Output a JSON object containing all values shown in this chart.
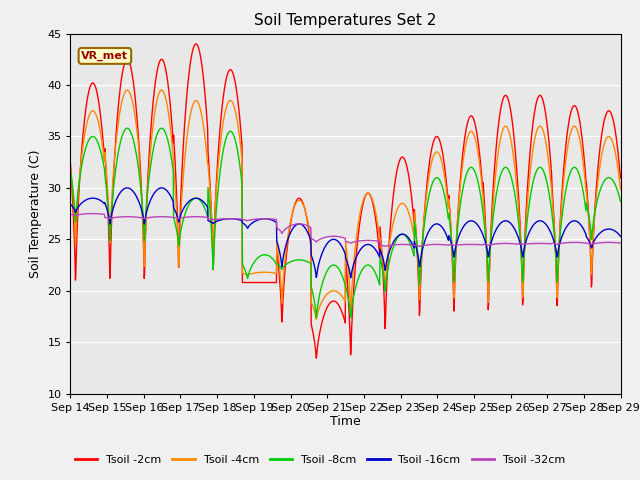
{
  "title": "Soil Temperatures Set 2",
  "xlabel": "Time",
  "ylabel": "Soil Temperature (C)",
  "ylim": [
    10,
    45
  ],
  "background_color": "#f0f0f0",
  "plot_bg_color": "#e8e8e8",
  "annotation_text": "VR_met",
  "annotation_bg": "#ffffcc",
  "annotation_border": "#996600",
  "x_tick_labels": [
    "Sep 14",
    "Sep 15",
    "Sep 16",
    "Sep 17",
    "Sep 18",
    "Sep 19",
    "Sep 20",
    "Sep 21",
    "Sep 22",
    "Sep 23",
    "Sep 24",
    "Sep 25",
    "Sep 26",
    "Sep 27",
    "Sep 28",
    "Sep 29"
  ],
  "colors": {
    "Tsoil -2cm": "#ff0000",
    "Tsoil -4cm": "#ff8800",
    "Tsoil -8cm": "#00cc00",
    "Tsoil -16cm": "#0000cc",
    "Tsoil -32cm": "#bb44bb"
  },
  "t2_max": [
    40.2,
    42.5,
    42.5,
    44.0,
    41.5,
    20.8,
    29.0,
    19.0,
    29.5,
    33.0,
    35.0,
    37.0,
    39.0,
    39.0,
    38.0,
    37.5
  ],
  "t2_min": [
    19.5,
    19.5,
    19.5,
    20.5,
    20.5,
    20.8,
    16.0,
    13.0,
    12.5,
    15.0,
    16.2,
    16.5,
    16.5,
    17.0,
    17.0,
    19.0
  ],
  "t4_max": [
    37.5,
    39.5,
    39.5,
    38.5,
    38.5,
    21.8,
    28.8,
    20.0,
    29.5,
    28.5,
    33.5,
    35.5,
    36.0,
    36.0,
    36.0,
    35.0
  ],
  "t4_min": [
    23.5,
    23.5,
    21.0,
    21.0,
    22.0,
    21.5,
    18.0,
    17.0,
    17.0,
    19.5,
    18.0,
    18.0,
    17.5,
    18.0,
    18.0,
    20.5
  ],
  "t8_max": [
    35.0,
    35.8,
    35.8,
    29.0,
    35.5,
    23.5,
    23.0,
    22.5,
    22.5,
    25.5,
    31.0,
    32.0,
    32.0,
    32.0,
    32.0,
    31.0
  ],
  "t8_min": [
    26.0,
    24.0,
    24.0,
    24.0,
    21.0,
    21.0,
    22.0,
    17.0,
    17.0,
    19.5,
    19.7,
    20.0,
    20.0,
    20.0,
    20.0,
    24.5
  ],
  "t16_max": [
    29.0,
    30.0,
    30.0,
    29.0,
    27.0,
    27.0,
    26.5,
    25.0,
    24.5,
    25.5,
    26.5,
    26.8,
    26.8,
    26.8,
    26.8,
    26.0
  ],
  "t16_min": [
    27.5,
    26.2,
    26.2,
    26.5,
    26.5,
    26.0,
    22.0,
    21.0,
    21.0,
    21.7,
    22.0,
    23.0,
    23.0,
    23.0,
    23.0,
    24.0
  ],
  "t32_max": [
    27.5,
    27.2,
    27.2,
    27.2,
    27.0,
    27.0,
    26.5,
    25.3,
    24.9,
    24.5,
    24.5,
    24.5,
    24.6,
    24.6,
    24.7,
    24.7
  ],
  "t32_min": [
    27.3,
    27.0,
    27.0,
    27.0,
    26.9,
    26.8,
    25.5,
    24.7,
    24.6,
    24.3,
    24.3,
    24.4,
    24.4,
    24.5,
    24.5,
    24.5
  ]
}
